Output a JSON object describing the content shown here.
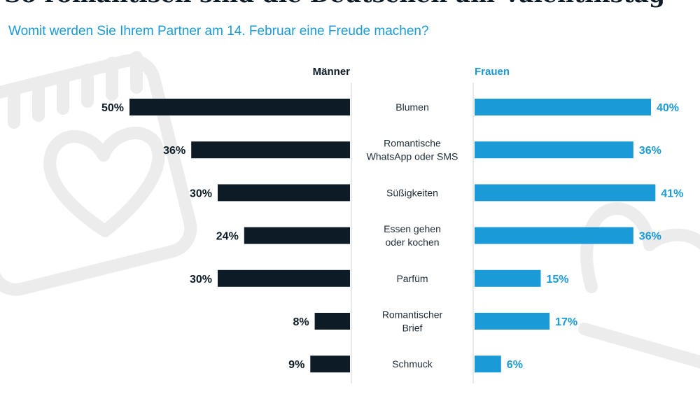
{
  "page": {
    "title": "So romantisch sind die Deutschen am Valentinstag",
    "subtitle": "Womit werden Sie Ihrem Partner am 14. Februar eine Freude machen?"
  },
  "colors": {
    "men": "#0c1b26",
    "women": "#1a9ad6",
    "text": "#1d2b36",
    "divider": "#cfd4d8"
  },
  "chart_data": {
    "type": "bar",
    "orientation": "horizontal-butterfly",
    "title": "So romantisch sind die Deutschen am Valentinstag",
    "subtitle": "Womit werden Sie Ihrem Partner am 14. Februar eine Freude machen?",
    "unit": "%",
    "categories": [
      [
        "Blumen"
      ],
      [
        "Romantische",
        "WhatsApp oder SMS"
      ],
      [
        "Süßigkeiten"
      ],
      [
        "Essen gehen",
        "oder kochen"
      ],
      [
        "Parfüm"
      ],
      [
        "Romantischer",
        "Brief"
      ],
      [
        "Schmuck"
      ]
    ],
    "series": [
      {
        "name": "Männer",
        "values": [
          50,
          36,
          30,
          24,
          30,
          8,
          9
        ]
      },
      {
        "name": "Frauen",
        "values": [
          40,
          36,
          41,
          36,
          15,
          17,
          6
        ]
      }
    ],
    "xlim": [
      0,
      50
    ]
  }
}
